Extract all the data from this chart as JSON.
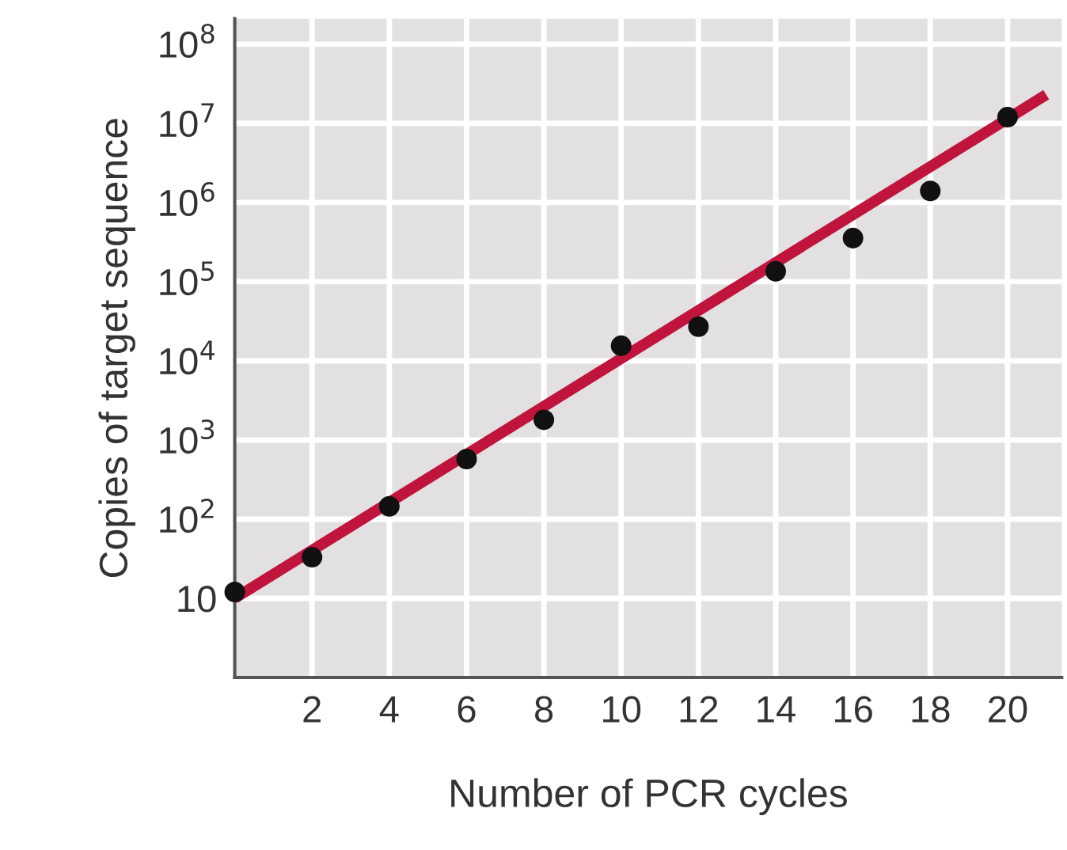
{
  "chart_data": {
    "type": "scatter",
    "xlabel": "Number of PCR cycles",
    "ylabel": "Copies of target sequence",
    "log": "y",
    "grid": true,
    "xlim": [
      0,
      21.4
    ],
    "ylim": [
      1,
      210000000
    ],
    "xticks": [
      2,
      4,
      6,
      8,
      10,
      12,
      14,
      16,
      18,
      20
    ],
    "yticks": [
      {
        "value": 10,
        "label": "10"
      },
      {
        "value": 100,
        "label": "10$^{2}$"
      },
      {
        "value": 1000,
        "label": "10$^{3}$"
      },
      {
        "value": 10000,
        "label": "10$^{4}$"
      },
      {
        "value": 100000,
        "label": "10$^{5}$"
      },
      {
        "value": 1000000,
        "label": "10$^{6}$"
      },
      {
        "value": 10000000,
        "label": "10$^{7}$"
      },
      {
        "value": 100000000,
        "label": "10$^{8}$"
      }
    ],
    "series": [
      {
        "type": "line",
        "color": "#c0143c",
        "marker": "none",
        "x": [
          0,
          21
        ],
        "values": [
          10,
          23000000
        ]
      },
      {
        "color": "#111111",
        "marker": "circle",
        "x": [
          0,
          2,
          4,
          6,
          8,
          10,
          12,
          14,
          16,
          18,
          20
        ],
        "values": [
          12,
          33,
          145,
          575,
          1800,
          15500,
          27000,
          135000,
          355000,
          1400000,
          12000000
        ]
      }
    ]
  }
}
